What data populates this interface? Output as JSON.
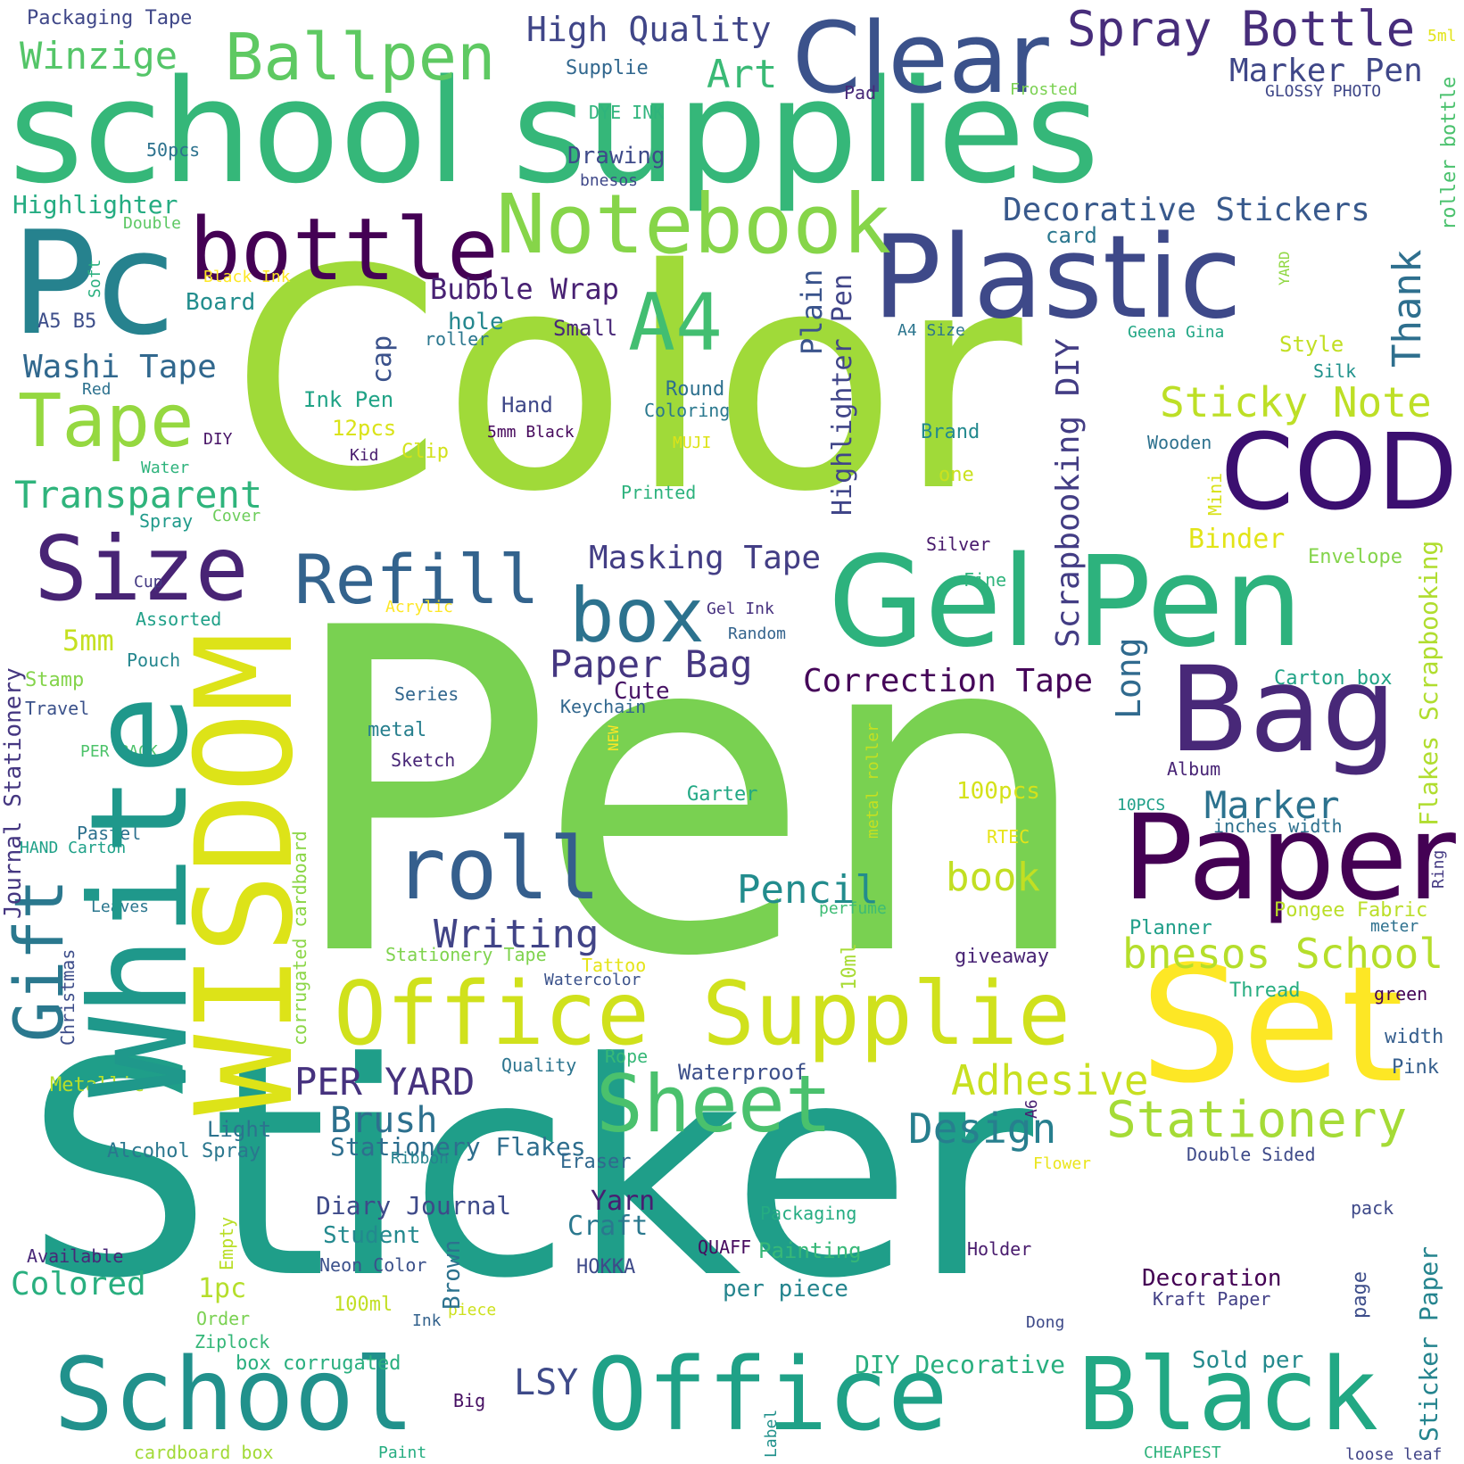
{
  "words": [
    {
      "text": "Pen",
      "color": "#79d151"
    },
    {
      "text": "Sticker",
      "color": "#1f9e89"
    },
    {
      "text": "Color",
      "color": "#a0da39"
    },
    {
      "text": "school supplies",
      "color": "#35b779"
    },
    {
      "text": "Pc",
      "color": "#26828e"
    },
    {
      "text": "Clear",
      "color": "#3b528b"
    },
    {
      "text": "Plastic",
      "color": "#3e4989"
    },
    {
      "text": "COD",
      "color": "#3b0f70"
    },
    {
      "text": "Gel Pen",
      "color": "#2db27d"
    },
    {
      "text": "Bag",
      "color": "#482878"
    },
    {
      "text": "Paper",
      "color": "#440154"
    },
    {
      "text": "Set",
      "color": "#fde725"
    },
    {
      "text": "Black",
      "color": "#22a884"
    },
    {
      "text": "Office",
      "color": "#1fa187"
    },
    {
      "text": "School",
      "color": "#21918c"
    },
    {
      "text": "Office Supplie",
      "color": "#d0e11c"
    },
    {
      "text": "Sheet",
      "color": "#4ac16d"
    },
    {
      "text": "White",
      "color": "#1f988b"
    },
    {
      "text": "WISDOM",
      "color": "#dde318"
    },
    {
      "text": "Size",
      "color": "#482475"
    },
    {
      "text": "box",
      "color": "#2c728e"
    },
    {
      "text": "roll",
      "color": "#355f8d"
    },
    {
      "text": "Refill",
      "color": "#33638d"
    },
    {
      "text": "bottle",
      "color": "#440154"
    },
    {
      "text": "Notebook",
      "color": "#86d549"
    },
    {
      "text": "A4",
      "color": "#42be71"
    },
    {
      "text": "Tape",
      "color": "#95d840"
    },
    {
      "text": "Ballpen",
      "color": "#5ec962"
    },
    {
      "text": "Spray Bottle",
      "color": "#472d7b"
    },
    {
      "text": "Gift",
      "color": "#2a788e"
    },
    {
      "text": "Stationery",
      "color": "#a5db36"
    },
    {
      "text": "Design",
      "color": "#277f8e"
    },
    {
      "text": "bnesos School",
      "color": "#b5de2b"
    },
    {
      "text": "Adhesive",
      "color": "#c8e020"
    },
    {
      "text": "Sticky Note",
      "color": "#bddf26"
    },
    {
      "text": "PER YARD",
      "color": "#46327e"
    },
    {
      "text": "Brush",
      "color": "#2d708e"
    },
    {
      "text": "Writing",
      "color": "#414487"
    },
    {
      "text": "Pencil",
      "color": "#228c8d"
    },
    {
      "text": "book",
      "color": "#c2df23"
    },
    {
      "text": "Marker",
      "color": "#2c728e"
    },
    {
      "text": "Correction Tape",
      "color": "#450559"
    },
    {
      "text": "Paper Bag",
      "color": "#453781"
    },
    {
      "text": "Masking Tape",
      "color": "#433e85"
    },
    {
      "text": "Transparent",
      "color": "#2fb47c"
    },
    {
      "text": "Washi Tape",
      "color": "#31688e"
    },
    {
      "text": "Winzige",
      "color": "#54c568"
    },
    {
      "text": "Highlighter",
      "color": "#25ac82"
    },
    {
      "text": "Art",
      "color": "#3aba76"
    },
    {
      "text": "High Quality",
      "color": "#404688"
    },
    {
      "text": "Marker Pen",
      "color": "#3f4788"
    },
    {
      "text": "Decorative Stickers",
      "color": "#38598c"
    },
    {
      "text": "Bubble Wrap",
      "color": "#482173"
    },
    {
      "text": "Colored",
      "color": "#29af7f"
    },
    {
      "text": "Stationery Flakes",
      "color": "#2e6e8e"
    },
    {
      "text": "Diary Journal",
      "color": "#3e4a89"
    },
    {
      "text": "Craft",
      "color": "#2a788e"
    },
    {
      "text": "Yarn",
      "color": "#481f71"
    },
    {
      "text": "Decoration",
      "color": "#440154"
    },
    {
      "text": "DIY Decorative",
      "color": "#29af7f"
    },
    {
      "text": "LSY",
      "color": "#3e4a89"
    },
    {
      "text": "Thank",
      "color": "#2e6f8e"
    },
    {
      "text": "Scrapbooking DIY",
      "color": "#433d84"
    },
    {
      "text": "Long",
      "color": "#306a8e"
    },
    {
      "text": "Highlighter Pen",
      "color": "#404588"
    },
    {
      "text": "Plain",
      "color": "#3a548c"
    },
    {
      "text": "cap",
      "color": "#3b528b"
    },
    {
      "text": "Cute",
      "color": "#471365"
    },
    {
      "text": "Student",
      "color": "#23898e"
    },
    {
      "text": "Journal Stationery",
      "color": "#453781"
    },
    {
      "text": "Flakes Scrapbooking",
      "color": "#b0dd2f"
    },
    {
      "text": "Sticker Paper",
      "color": "#25848e"
    },
    {
      "text": "1pc",
      "color": "#b5de2b"
    },
    {
      "text": "5mm",
      "color": "#c5e021"
    },
    {
      "text": "Binder",
      "color": "#e2e418"
    },
    {
      "text": "100pcs",
      "color": "#d5e21a"
    },
    {
      "text": "Drawing",
      "color": "#3e4a89"
    },
    {
      "text": "Board",
      "color": "#228d8d"
    },
    {
      "text": "hole",
      "color": "#24878e"
    },
    {
      "text": "Painting",
      "color": "#37b878"
    },
    {
      "text": "per piece",
      "color": "#25858e"
    },
    {
      "text": "Sold per",
      "color": "#238a8d"
    },
    {
      "text": "Packaging Tape",
      "color": "#3f4788"
    },
    {
      "text": "Supplie",
      "color": "#31678e"
    },
    {
      "text": "DYE INK",
      "color": "#2fb47c"
    },
    {
      "text": "50pcs",
      "color": "#2c728e"
    },
    {
      "text": "bnesos",
      "color": "#3f4889"
    },
    {
      "text": "Double",
      "color": "#5cc863"
    },
    {
      "text": "Soft",
      "color": "#2ab07f"
    },
    {
      "text": "Black Ink",
      "color": "#fde725"
    },
    {
      "text": "A5 B5",
      "color": "#3d4e8a"
    },
    {
      "text": "Small",
      "color": "#482878"
    },
    {
      "text": "roller",
      "color": "#2a768e"
    },
    {
      "text": "Ink Pen",
      "color": "#20a386"
    },
    {
      "text": "12pcs",
      "color": "#dae319"
    },
    {
      "text": "Clip",
      "color": "#d2e21b"
    },
    {
      "text": "Hand",
      "color": "#3f4889"
    },
    {
      "text": "Round",
      "color": "#2d708e"
    },
    {
      "text": "Coloring",
      "color": "#2a788e"
    },
    {
      "text": "5mm Black",
      "color": "#46085c"
    },
    {
      "text": "MUJI",
      "color": "#dde318"
    },
    {
      "text": "Kid",
      "color": "#481c6e"
    },
    {
      "text": "DIY",
      "color": "#481467"
    },
    {
      "text": "Red",
      "color": "#2c718e"
    },
    {
      "text": "Water",
      "color": "#2eb37c"
    },
    {
      "text": "Spray",
      "color": "#1f9a8a"
    },
    {
      "text": "Cover",
      "color": "#6ccd5a"
    },
    {
      "text": "Printed",
      "color": "#2db27d"
    },
    {
      "text": "Brand",
      "color": "#23898e"
    },
    {
      "text": "one",
      "color": "#cae11f"
    },
    {
      "text": "Silver",
      "color": "#481a6c"
    },
    {
      "text": "Fine",
      "color": "#2fb47c"
    },
    {
      "text": "Cup",
      "color": "#443983"
    },
    {
      "text": "Assorted",
      "color": "#1fa088"
    },
    {
      "text": "Acrylic",
      "color": "#fde725"
    },
    {
      "text": "Gel Ink",
      "color": "#46307e"
    },
    {
      "text": "Random",
      "color": "#33638d"
    },
    {
      "text": "Pouch",
      "color": "#24868e"
    },
    {
      "text": "Stamp",
      "color": "#84d44b"
    },
    {
      "text": "Travel",
      "color": "#3b528b"
    },
    {
      "text": "Series",
      "color": "#31668e"
    },
    {
      "text": "Keychain",
      "color": "#31678e"
    },
    {
      "text": "metal",
      "color": "#277f8e"
    },
    {
      "text": "Sketch",
      "color": "#482677"
    },
    {
      "text": "PER PACK",
      "color": "#4ec36b"
    },
    {
      "text": "NEW",
      "color": "#fde725"
    },
    {
      "text": "metal roller",
      "color": "#c5e021"
    },
    {
      "text": "Garter",
      "color": "#22a884"
    },
    {
      "text": "Pastel",
      "color": "#2d718e"
    },
    {
      "text": "HAND Carton",
      "color": "#1fa188"
    },
    {
      "text": "Leaves",
      "color": "#2a768e"
    },
    {
      "text": "corrugated cardboard",
      "color": "#8bd646"
    },
    {
      "text": "Christmas",
      "color": "#3d4d8a"
    },
    {
      "text": "Stationery Tape",
      "color": "#7fd34e"
    },
    {
      "text": "Tattoo",
      "color": "#e5e419"
    },
    {
      "text": "Watercolor",
      "color": "#3b528b"
    },
    {
      "text": "giveaway",
      "color": "#482374"
    },
    {
      "text": "10ml",
      "color": "#a8db34"
    },
    {
      "text": "Metallic",
      "color": "#b8de29"
    },
    {
      "text": "Quality",
      "color": "#2b748e"
    },
    {
      "text": "Rope",
      "color": "#37b878"
    },
    {
      "text": "Waterproof",
      "color": "#3c4f8a"
    },
    {
      "text": "Light",
      "color": "#2c738e"
    },
    {
      "text": "Alcohol Spray",
      "color": "#2a778e"
    },
    {
      "text": "Ribbon",
      "color": "#25838e"
    },
    {
      "text": "Eraser",
      "color": "#31688e"
    },
    {
      "text": "A6",
      "color": "#481f71"
    },
    {
      "text": "Available",
      "color": "#482878"
    },
    {
      "text": "Empty",
      "color": "#bade28"
    },
    {
      "text": "Neon Color",
      "color": "#3b518b"
    },
    {
      "text": "QUAFF",
      "color": "#460b5e"
    },
    {
      "text": "HOKKA",
      "color": "#3e4a89"
    },
    {
      "text": "Brown",
      "color": "#2c728e"
    },
    {
      "text": "100ml",
      "color": "#c2df23"
    },
    {
      "text": "Order",
      "color": "#7ad151"
    },
    {
      "text": "Ink",
      "color": "#33628d"
    },
    {
      "text": "piece",
      "color": "#cde11d"
    },
    {
      "text": "Ziplock",
      "color": "#35b779"
    },
    {
      "text": "box corrugated",
      "color": "#29af7f"
    },
    {
      "text": "Big",
      "color": "#471063"
    },
    {
      "text": "Paint",
      "color": "#26ad81"
    },
    {
      "text": "cardboard box",
      "color": "#a2da37"
    },
    {
      "text": "Label",
      "color": "#21918c"
    },
    {
      "text": "Packaging",
      "color": "#25ac82"
    },
    {
      "text": "Holder",
      "color": "#481b6d"
    },
    {
      "text": "Dong",
      "color": "#3e4a89"
    },
    {
      "text": "Kraft Paper",
      "color": "#424086"
    },
    {
      "text": "page",
      "color": "#3d4d8a"
    },
    {
      "text": "pack",
      "color": "#3e4989"
    },
    {
      "text": "Double Sided",
      "color": "#3e4a89"
    },
    {
      "text": "Flower",
      "color": "#eae51a"
    },
    {
      "text": "CHEAPEST",
      "color": "#2eb37c"
    },
    {
      "text": "loose leaf",
      "color": "#414487"
    },
    {
      "text": "Pink",
      "color": "#355e8d"
    },
    {
      "text": "width",
      "color": "#355e8d"
    },
    {
      "text": "green",
      "color": "#450457"
    },
    {
      "text": "Thread",
      "color": "#27ad81"
    },
    {
      "text": "meter",
      "color": "#2d708e"
    },
    {
      "text": "Planner",
      "color": "#1f9e89"
    },
    {
      "text": "Pongee Fabric",
      "color": "#bade28"
    },
    {
      "text": "Ring",
      "color": "#443a83"
    },
    {
      "text": "inches width",
      "color": "#2d708e"
    },
    {
      "text": "10PCS",
      "color": "#1f9f88"
    },
    {
      "text": "RTEC",
      "color": "#e7e419"
    },
    {
      "text": "perfume",
      "color": "#3dbc74"
    },
    {
      "text": "Album",
      "color": "#482475"
    },
    {
      "text": "Carton box",
      "color": "#20a386"
    },
    {
      "text": "Envelope",
      "color": "#84d44b"
    },
    {
      "text": "Mini",
      "color": "#d8e219"
    },
    {
      "text": "Wooden",
      "color": "#2d718e"
    },
    {
      "text": "Style",
      "color": "#c2df23"
    },
    {
      "text": "Silk",
      "color": "#20928c"
    },
    {
      "text": "Geena Gina",
      "color": "#22a785"
    },
    {
      "text": "A4 Size",
      "color": "#2b758e"
    },
    {
      "text": "YARD",
      "color": "#90d743"
    },
    {
      "text": "roller bottle",
      "color": "#4ac16d"
    },
    {
      "text": "card",
      "color": "#2a768e"
    },
    {
      "text": "Pad",
      "color": "#482979"
    },
    {
      "text": "Frosted",
      "color": "#7ad151"
    },
    {
      "text": "GLOSSY PHOTO",
      "color": "#3f4788"
    },
    {
      "text": "5ml",
      "color": "#e2e418"
    }
  ]
}
